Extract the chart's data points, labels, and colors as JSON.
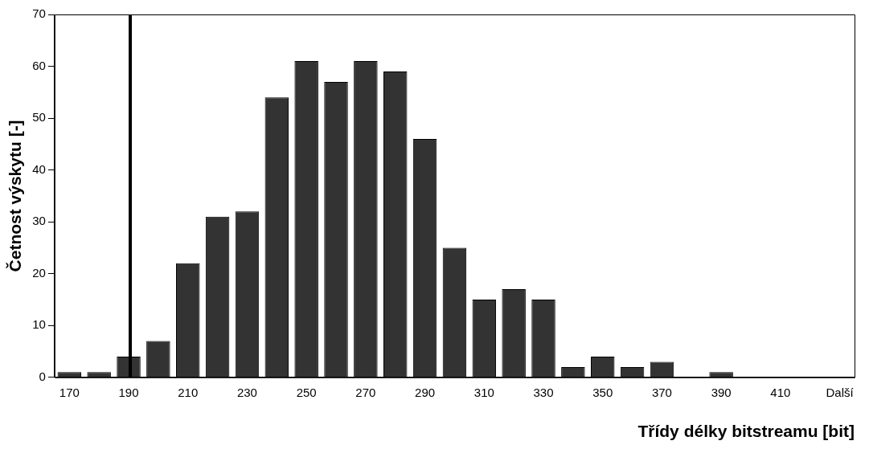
{
  "chart_data": {
    "type": "bar",
    "xlabel": "Třídy délky bitstreamu [bit]",
    "ylabel": "Četnost výskytu [-]",
    "categories": [
      "170",
      null,
      "190",
      null,
      "210",
      null,
      "230",
      null,
      "250",
      null,
      "270",
      null,
      "290",
      null,
      "310",
      null,
      "330",
      null,
      "350",
      null,
      "370",
      null,
      "390",
      null,
      "410",
      null,
      "Další"
    ],
    "series": [
      {
        "color": "#333333",
        "values": [
          1,
          1,
          4,
          7,
          22,
          31,
          32,
          54,
          61,
          57,
          61,
          59,
          46,
          25,
          15,
          17,
          15,
          2,
          4,
          2,
          3,
          0,
          1,
          0,
          0,
          0,
          0
        ]
      }
    ],
    "ylim": [
      0,
      70
    ],
    "yticks": [
      0,
      10,
      20,
      30,
      40,
      50,
      60,
      70
    ],
    "ref_lines": [
      {
        "axis": "x",
        "value": "190",
        "color": "#000000"
      }
    ],
    "grid": false,
    "legend": false
  }
}
